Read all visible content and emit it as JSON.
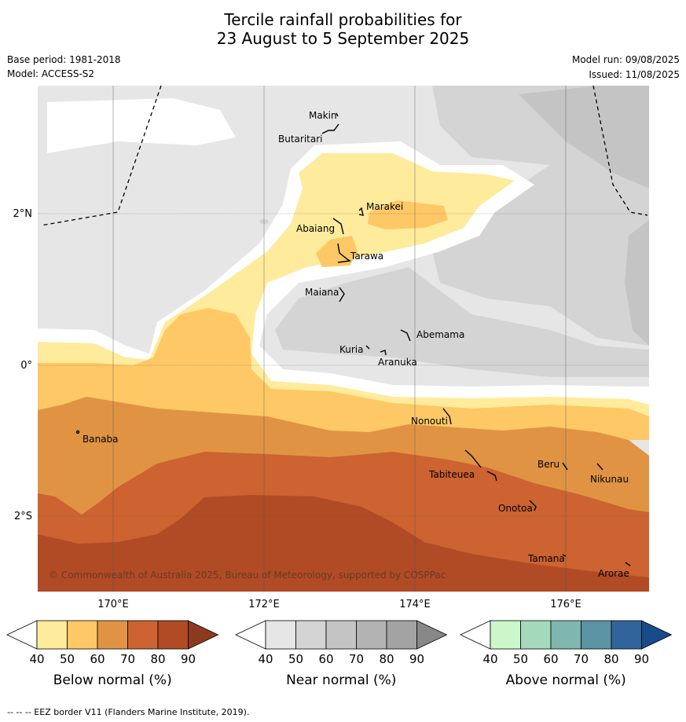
{
  "header": {
    "title_line1": "Tercile rainfall probabilities for",
    "title_line2": "23 August to 5 September 2025",
    "base_period": "Base period: 1981-2018",
    "model": "Model: ACCESS-S2",
    "model_run": "Model run: 09/08/2025",
    "issued": "Issued: 11/08/2025"
  },
  "map": {
    "longitude_labels": [
      "170°E",
      "172°E",
      "174°E",
      "176°E"
    ],
    "latitude_labels": [
      "2°N",
      "0°",
      "2°S"
    ],
    "places": [
      {
        "name": "Makin"
      },
      {
        "name": "Butaritari"
      },
      {
        "name": "Marakei"
      },
      {
        "name": "Abaiang"
      },
      {
        "name": "Tarawa"
      },
      {
        "name": "Maiana"
      },
      {
        "name": "Abemama"
      },
      {
        "name": "Kuria"
      },
      {
        "name": "Aranuka"
      },
      {
        "name": "Banaba"
      },
      {
        "name": "Nonouti"
      },
      {
        "name": "Beru"
      },
      {
        "name": "Nikunau"
      },
      {
        "name": "Tabiteuea"
      },
      {
        "name": "Onotoa"
      },
      {
        "name": "Tamana"
      },
      {
        "name": "Arorae"
      }
    ],
    "copyright": "© Commonwealth of Australia 2025, Bureau of Meteorology, supported by COSPPac"
  },
  "colorbars": [
    {
      "label": "Below normal (%)",
      "ticks": [
        "40",
        "50",
        "60",
        "70",
        "80",
        "90"
      ],
      "colors": [
        "#ffffff",
        "#ffeb9c",
        "#fdc865",
        "#e09443",
        "#cc6330",
        "#b04b26",
        "#8c3a1e"
      ]
    },
    {
      "label": "Near normal (%)",
      "ticks": [
        "40",
        "50",
        "60",
        "70",
        "80",
        "90"
      ],
      "colors": [
        "#ffffff",
        "#e6e6e6",
        "#d4d4d4",
        "#c4c4c4",
        "#b3b3b3",
        "#a3a3a3",
        "#888888"
      ]
    },
    {
      "label": "Above normal (%)",
      "ticks": [
        "40",
        "50",
        "60",
        "70",
        "80",
        "90"
      ],
      "colors": [
        "#ffffff",
        "#cbf7cb",
        "#a5d9bc",
        "#7fb6b0",
        "#5c93a3",
        "#31649b",
        "#184b8a"
      ]
    }
  ],
  "footer": {
    "eez_note": "--  --  -- EEZ border V11 (Flanders Marine Institute, 2019)."
  }
}
